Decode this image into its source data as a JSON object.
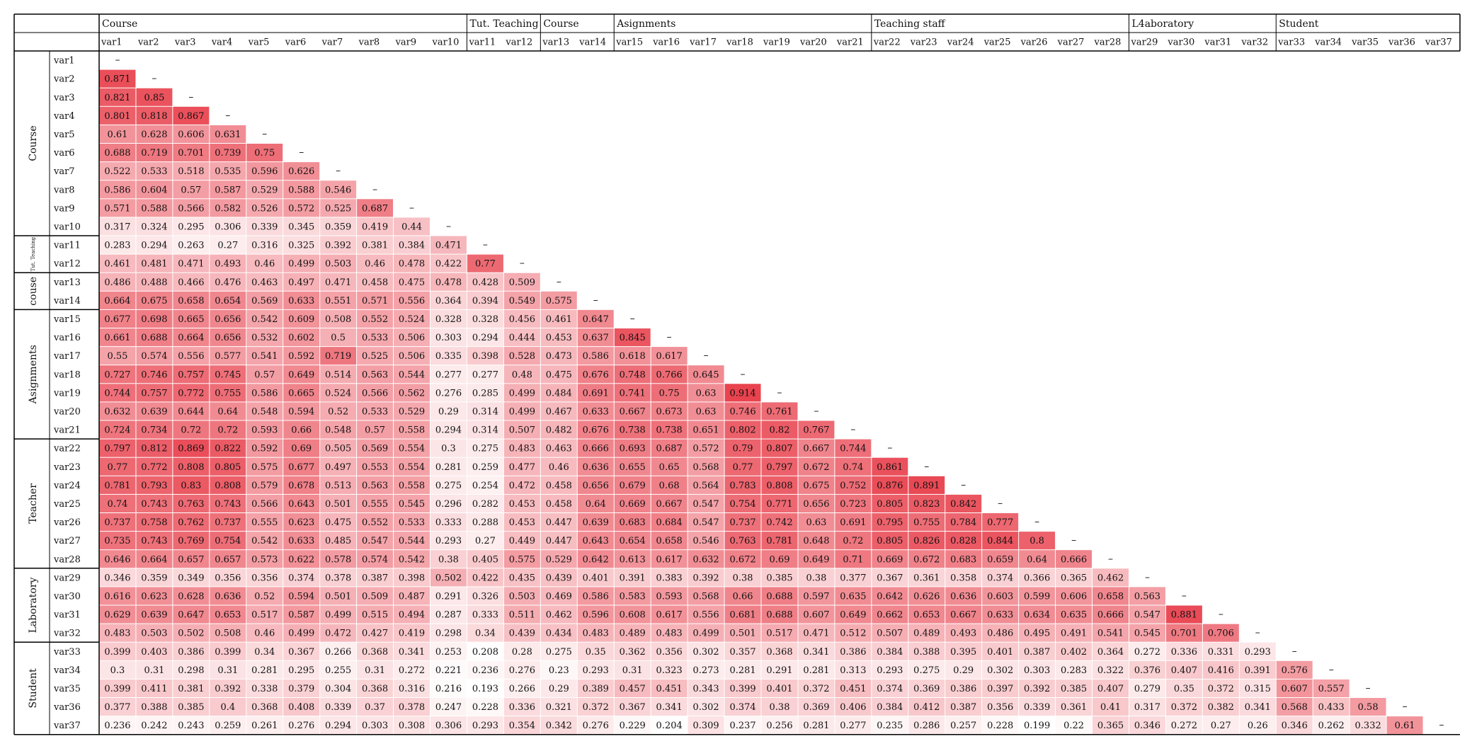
{
  "chart_data": {
    "type": "heatmap",
    "colors": {
      "low": "#ffffff",
      "high": "#e8414d",
      "border": "#000000",
      "cell_text": "#111111"
    },
    "dash": "–",
    "groups": [
      {
        "label": "Course",
        "row_label": "Course",
        "start": 0,
        "count": 10
      },
      {
        "label": "Tut. Teaching",
        "row_label": "Tut. Teaching",
        "start": 10,
        "count": 2
      },
      {
        "label": "Course",
        "row_label": "couse",
        "start": 12,
        "count": 2
      },
      {
        "label": "Asignments",
        "row_label": "Asignments",
        "start": 14,
        "count": 7
      },
      {
        "label": "Teaching staff",
        "row_label": "Teacher",
        "start": 21,
        "count": 7
      },
      {
        "label": "L4aboratory",
        "row_label": "Laboratory",
        "start": 28,
        "count": 4
      },
      {
        "label": "Student",
        "row_label": "Student",
        "start": 32,
        "count": 5
      }
    ],
    "variables": [
      "var1",
      "var2",
      "var3",
      "var4",
      "var5",
      "var6",
      "var7",
      "var8",
      "var9",
      "var10",
      "var11",
      "var12",
      "var13",
      "var14",
      "var15",
      "var16",
      "var17",
      "var18",
      "var19",
      "var20",
      "var21",
      "var22",
      "var23",
      "var24",
      "var25",
      "var26",
      "var27",
      "var28",
      "var29",
      "var30",
      "var31",
      "var32",
      "var33",
      "var34",
      "var35",
      "var36",
      "var37"
    ],
    "rows": [
      [],
      [
        0.871
      ],
      [
        0.821,
        0.85
      ],
      [
        0.801,
        0.818,
        0.867
      ],
      [
        0.61,
        0.628,
        0.606,
        0.631
      ],
      [
        0.688,
        0.719,
        0.701,
        0.739,
        0.75
      ],
      [
        0.522,
        0.533,
        0.518,
        0.535,
        0.596,
        0.626
      ],
      [
        0.586,
        0.604,
        0.57,
        0.587,
        0.529,
        0.588,
        0.546
      ],
      [
        0.571,
        0.588,
        0.566,
        0.582,
        0.526,
        0.572,
        0.525,
        0.687
      ],
      [
        0.317,
        0.324,
        0.295,
        0.306,
        0.339,
        0.345,
        0.359,
        0.419,
        0.44
      ],
      [
        0.283,
        0.294,
        0.263,
        0.27,
        0.316,
        0.325,
        0.392,
        0.381,
        0.384,
        0.471
      ],
      [
        0.461,
        0.481,
        0.471,
        0.493,
        0.46,
        0.499,
        0.503,
        0.46,
        0.478,
        0.422,
        0.77
      ],
      [
        0.486,
        0.488,
        0.466,
        0.476,
        0.463,
        0.497,
        0.471,
        0.458,
        0.475,
        0.478,
        0.428,
        0.509
      ],
      [
        0.664,
        0.675,
        0.658,
        0.654,
        0.569,
        0.633,
        0.551,
        0.571,
        0.556,
        0.364,
        0.394,
        0.549,
        0.575
      ],
      [
        0.677,
        0.698,
        0.665,
        0.656,
        0.542,
        0.609,
        0.508,
        0.552,
        0.524,
        0.328,
        0.328,
        0.456,
        0.461,
        0.647
      ],
      [
        0.661,
        0.688,
        0.664,
        0.656,
        0.532,
        0.602,
        0.5,
        0.533,
        0.506,
        0.303,
        0.294,
        0.444,
        0.453,
        0.637,
        0.845
      ],
      [
        0.55,
        0.574,
        0.556,
        0.577,
        0.541,
        0.592,
        0.719,
        0.525,
        0.506,
        0.335,
        0.398,
        0.528,
        0.473,
        0.586,
        0.618,
        0.617
      ],
      [
        0.727,
        0.746,
        0.757,
        0.745,
        0.57,
        0.649,
        0.514,
        0.563,
        0.544,
        0.277,
        0.277,
        0.48,
        0.475,
        0.676,
        0.748,
        0.766,
        0.645
      ],
      [
        0.744,
        0.757,
        0.772,
        0.755,
        0.586,
        0.665,
        0.524,
        0.566,
        0.562,
        0.276,
        0.285,
        0.499,
        0.484,
        0.691,
        0.741,
        0.75,
        0.63,
        0.914
      ],
      [
        0.632,
        0.639,
        0.644,
        0.64,
        0.548,
        0.594,
        0.52,
        0.533,
        0.529,
        0.29,
        0.314,
        0.499,
        0.467,
        0.633,
        0.667,
        0.673,
        0.63,
        0.746,
        0.761
      ],
      [
        0.724,
        0.734,
        0.72,
        0.72,
        0.593,
        0.66,
        0.548,
        0.57,
        0.558,
        0.294,
        0.314,
        0.507,
        0.482,
        0.676,
        0.738,
        0.738,
        0.651,
        0.802,
        0.82,
        0.767
      ],
      [
        0.797,
        0.812,
        0.869,
        0.822,
        0.592,
        0.69,
        0.505,
        0.569,
        0.554,
        0.3,
        0.275,
        0.483,
        0.463,
        0.666,
        0.693,
        0.687,
        0.572,
        0.79,
        0.807,
        0.667,
        0.744
      ],
      [
        0.77,
        0.772,
        0.808,
        0.805,
        0.575,
        0.677,
        0.497,
        0.553,
        0.554,
        0.281,
        0.259,
        0.477,
        0.46,
        0.636,
        0.655,
        0.65,
        0.568,
        0.77,
        0.797,
        0.672,
        0.74,
        0.861
      ],
      [
        0.781,
        0.793,
        0.83,
        0.808,
        0.579,
        0.678,
        0.513,
        0.563,
        0.558,
        0.275,
        0.254,
        0.472,
        0.458,
        0.656,
        0.679,
        0.68,
        0.564,
        0.783,
        0.808,
        0.675,
        0.752,
        0.876,
        0.891
      ],
      [
        0.74,
        0.743,
        0.763,
        0.743,
        0.566,
        0.643,
        0.501,
        0.555,
        0.545,
        0.296,
        0.282,
        0.453,
        0.458,
        0.64,
        0.669,
        0.667,
        0.547,
        0.754,
        0.771,
        0.656,
        0.723,
        0.805,
        0.823,
        0.842
      ],
      [
        0.737,
        0.758,
        0.762,
        0.737,
        0.555,
        0.623,
        0.475,
        0.552,
        0.533,
        0.333,
        0.288,
        0.453,
        0.447,
        0.639,
        0.683,
        0.684,
        0.547,
        0.737,
        0.742,
        0.63,
        0.691,
        0.795,
        0.755,
        0.784,
        0.777
      ],
      [
        0.735,
        0.743,
        0.769,
        0.754,
        0.542,
        0.633,
        0.485,
        0.547,
        0.544,
        0.293,
        0.27,
        0.449,
        0.447,
        0.643,
        0.654,
        0.658,
        0.546,
        0.763,
        0.781,
        0.648,
        0.72,
        0.805,
        0.826,
        0.828,
        0.844,
        0.8
      ],
      [
        0.646,
        0.664,
        0.657,
        0.657,
        0.573,
        0.622,
        0.578,
        0.574,
        0.542,
        0.38,
        0.405,
        0.575,
        0.529,
        0.642,
        0.613,
        0.617,
        0.632,
        0.672,
        0.69,
        0.649,
        0.71,
        0.669,
        0.672,
        0.683,
        0.659,
        0.64,
        0.666
      ],
      [
        0.346,
        0.359,
        0.349,
        0.356,
        0.356,
        0.374,
        0.378,
        0.387,
        0.398,
        0.502,
        0.422,
        0.435,
        0.439,
        0.401,
        0.391,
        0.383,
        0.392,
        0.38,
        0.385,
        0.38,
        0.377,
        0.367,
        0.361,
        0.358,
        0.374,
        0.366,
        0.365,
        0.462
      ],
      [
        0.616,
        0.623,
        0.628,
        0.636,
        0.52,
        0.594,
        0.501,
        0.509,
        0.487,
        0.291,
        0.326,
        0.503,
        0.469,
        0.586,
        0.583,
        0.593,
        0.568,
        0.66,
        0.688,
        0.597,
        0.635,
        0.642,
        0.626,
        0.636,
        0.603,
        0.599,
        0.606,
        0.658,
        0.563
      ],
      [
        0.629,
        0.639,
        0.647,
        0.653,
        0.517,
        0.587,
        0.499,
        0.515,
        0.494,
        0.287,
        0.333,
        0.511,
        0.462,
        0.596,
        0.608,
        0.617,
        0.556,
        0.681,
        0.688,
        0.607,
        0.649,
        0.662,
        0.653,
        0.667,
        0.633,
        0.634,
        0.635,
        0.666,
        0.547,
        0.881
      ],
      [
        0.483,
        0.503,
        0.502,
        0.508,
        0.46,
        0.499,
        0.472,
        0.427,
        0.419,
        0.298,
        0.34,
        0.439,
        0.434,
        0.483,
        0.489,
        0.483,
        0.499,
        0.501,
        0.517,
        0.471,
        0.512,
        0.507,
        0.489,
        0.493,
        0.486,
        0.495,
        0.491,
        0.541,
        0.545,
        0.701,
        0.706
      ],
      [
        0.399,
        0.403,
        0.386,
        0.399,
        0.34,
        0.367,
        0.266,
        0.368,
        0.341,
        0.253,
        0.208,
        0.28,
        0.275,
        0.35,
        0.362,
        0.356,
        0.302,
        0.357,
        0.368,
        0.341,
        0.386,
        0.384,
        0.388,
        0.395,
        0.401,
        0.387,
        0.402,
        0.364,
        0.272,
        0.336,
        0.331,
        0.293
      ],
      [
        0.3,
        0.31,
        0.298,
        0.31,
        0.281,
        0.295,
        0.255,
        0.31,
        0.272,
        0.221,
        0.236,
        0.276,
        0.23,
        0.293,
        0.31,
        0.323,
        0.273,
        0.281,
        0.291,
        0.281,
        0.313,
        0.293,
        0.275,
        0.29,
        0.302,
        0.303,
        0.283,
        0.322,
        0.376,
        0.407,
        0.416,
        0.391,
        0.576
      ],
      [
        0.399,
        0.411,
        0.381,
        0.392,
        0.338,
        0.379,
        0.304,
        0.368,
        0.316,
        0.216,
        0.193,
        0.266,
        0.29,
        0.389,
        0.457,
        0.451,
        0.343,
        0.399,
        0.401,
        0.372,
        0.451,
        0.374,
        0.369,
        0.386,
        0.397,
        0.392,
        0.385,
        0.407,
        0.279,
        0.35,
        0.372,
        0.315,
        0.607,
        0.557
      ],
      [
        0.377,
        0.388,
        0.385,
        0.4,
        0.368,
        0.408,
        0.339,
        0.37,
        0.378,
        0.247,
        0.228,
        0.336,
        0.321,
        0.372,
        0.367,
        0.341,
        0.302,
        0.374,
        0.38,
        0.369,
        0.406,
        0.384,
        0.412,
        0.387,
        0.356,
        0.339,
        0.361,
        0.41,
        0.317,
        0.372,
        0.382,
        0.341,
        0.568,
        0.433,
        0.58
      ],
      [
        0.236,
        0.242,
        0.243,
        0.259,
        0.261,
        0.276,
        0.294,
        0.303,
        0.308,
        0.306,
        0.293,
        0.354,
        0.342,
        0.276,
        0.229,
        0.204,
        0.309,
        0.237,
        0.256,
        0.281,
        0.277,
        0.235,
        0.286,
        0.257,
        0.228,
        0.199,
        0.22,
        0.365,
        0.346,
        0.272,
        0.27,
        0.26,
        0.346,
        0.262,
        0.332,
        0.61
      ]
    ]
  }
}
